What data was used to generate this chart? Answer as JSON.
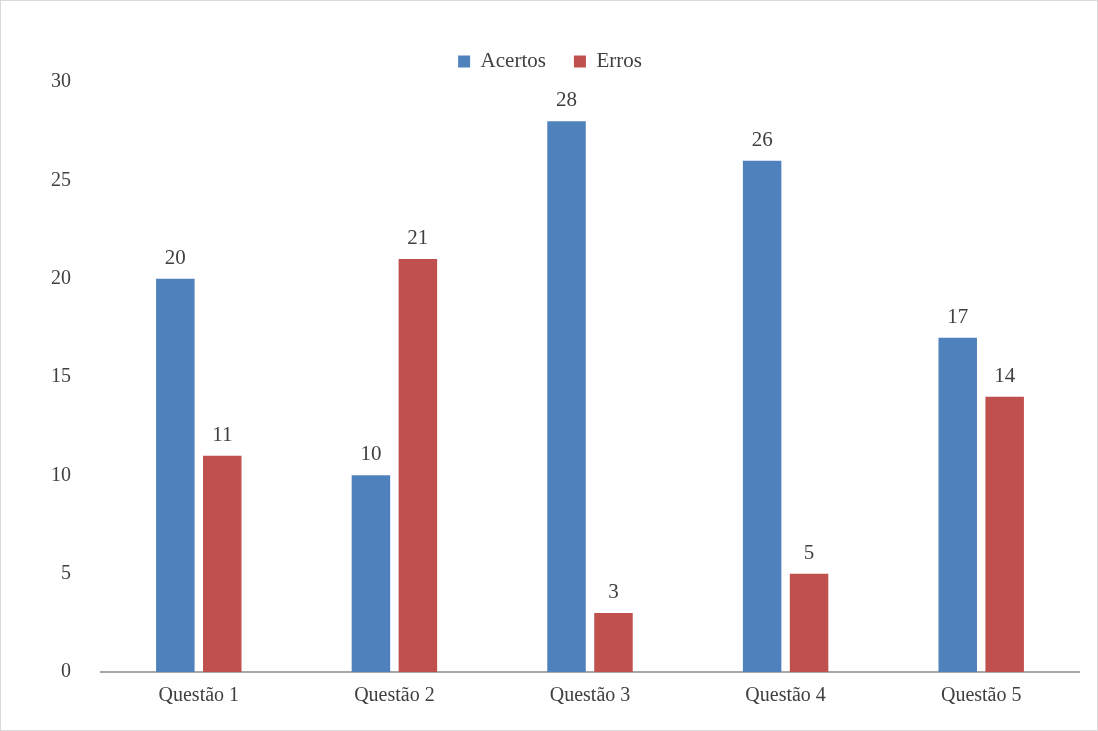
{
  "chart_data": {
    "type": "bar",
    "categories": [
      "Questão 1",
      "Questão 2",
      "Questão 3",
      "Questão 4",
      "Questão 5"
    ],
    "series": [
      {
        "name": "Acertos",
        "color": "#4f81bd",
        "values": [
          20,
          10,
          28,
          26,
          17
        ]
      },
      {
        "name": "Erros",
        "color": "#c0504d",
        "values": [
          11,
          21,
          3,
          5,
          14
        ]
      }
    ],
    "ylim": [
      0,
      30
    ],
    "yticks": [
      0,
      5,
      10,
      15,
      20,
      25,
      30
    ],
    "grid": false,
    "legend": "top",
    "data_labels": true
  }
}
